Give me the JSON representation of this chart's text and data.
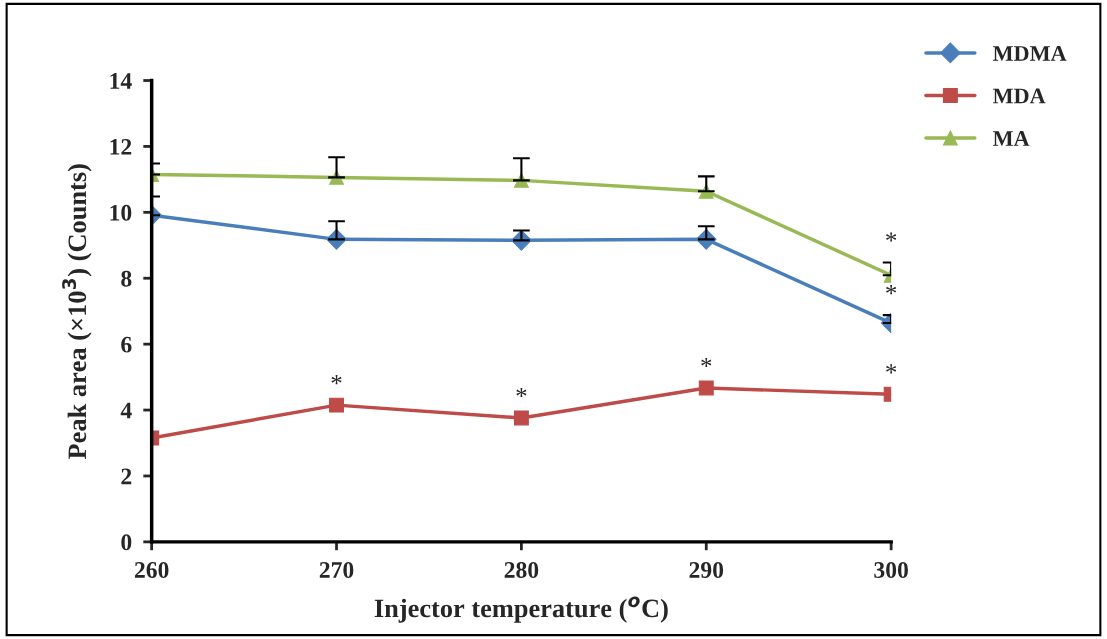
{
  "chart_data": {
    "type": "line",
    "xlabel": "Injector temperature ($^{o}$C)",
    "ylabel": "Peak area (×10$^{3}$) (Counts)",
    "x": [
      260,
      270,
      280,
      290,
      300
    ],
    "series": [
      {
        "name": "MDMA",
        "color": "#4a7ebb",
        "marker": "diamond",
        "values": [
          9.91,
          9.18,
          9.15,
          9.18,
          6.64
        ],
        "errors": [
          [
            9.91,
            10.48
          ],
          [
            9.18,
            9.73
          ],
          [
            9.15,
            9.45
          ],
          [
            9.18,
            9.58
          ],
          [
            6.64,
            6.88
          ]
        ]
      },
      {
        "name": "MDA",
        "color": "#be4b48",
        "marker": "square",
        "values": [
          3.15,
          4.15,
          3.76,
          4.67,
          4.48
        ]
      },
      {
        "name": "MA",
        "color": "#98b954",
        "marker": "triangle",
        "values": [
          11.15,
          11.06,
          10.97,
          10.64,
          8.09
        ],
        "errors": [
          [
            11.15,
            11.48
          ],
          [
            11.06,
            11.67
          ],
          [
            10.97,
            11.64
          ],
          [
            10.64,
            11.09
          ],
          [
            8.09,
            8.48
          ]
        ]
      }
    ],
    "annotations": [
      {
        "text": "*",
        "x": 270,
        "y": 4.15
      },
      {
        "text": "*",
        "x": 280,
        "y": 3.76
      },
      {
        "text": "*",
        "x": 290,
        "y": 4.67
      },
      {
        "text": "*",
        "x": 300,
        "y": 4.48
      },
      {
        "text": "*",
        "x": 300,
        "y": 6.88
      },
      {
        "text": "*",
        "x": 300,
        "y": 8.48
      }
    ],
    "xlim": [
      260,
      300
    ],
    "xticks": [
      260,
      270,
      280,
      290,
      300
    ],
    "ylim": [
      0,
      14
    ],
    "yticks": [
      0,
      2,
      4,
      6,
      8,
      10,
      12,
      14
    ],
    "grid": false,
    "legend": "top right"
  }
}
